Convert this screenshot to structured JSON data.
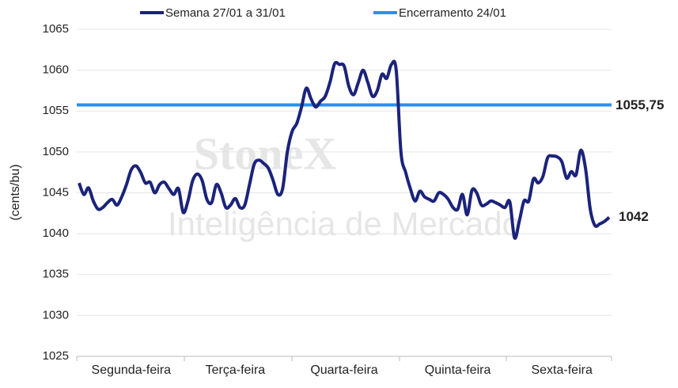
{
  "chart_data": {
    "type": "line",
    "watermark": [
      "StoneX",
      "Inteligência de Mercado"
    ],
    "y_label": "(cents/bu)",
    "categories": [
      null,
      null,
      null,
      null,
      null,
      null,
      null,
      null,
      null,
      null,
      null,
      "Segunda-feira",
      null,
      null,
      null,
      null,
      null,
      null,
      null,
      null,
      null,
      null,
      null,
      null,
      null,
      null,
      null,
      null,
      null,
      null,
      null,
      null,
      null,
      "Terça-feira",
      null,
      null,
      null,
      null,
      null,
      null,
      null,
      null,
      null,
      null,
      null,
      null,
      null,
      null,
      null,
      null,
      null,
      null,
      null,
      null,
      null,
      null,
      "Quarta-feira",
      null,
      null,
      null,
      null,
      null,
      null,
      null,
      null,
      null,
      null,
      null,
      null,
      null,
      null,
      null,
      null,
      null,
      null,
      null,
      null,
      null,
      null,
      null,
      "Quinta-feira",
      null,
      null,
      null,
      null,
      null,
      null,
      null,
      null,
      null,
      null,
      null,
      null,
      null,
      null,
      null,
      null,
      null,
      null,
      null,
      null,
      null,
      "Sexta-feira",
      null,
      null,
      null,
      null,
      null,
      null,
      null,
      null,
      null,
      null
    ],
    "series": [
      {
        "name": "Semana 27/01 a 31/01",
        "color": "#1b237a",
        "values": [
          1046.2,
          1044.8,
          1045.6,
          1044,
          1043,
          1043.2,
          1043.8,
          1044.2,
          1043.5,
          1044.5,
          1046,
          1047.8,
          1048.3,
          1047.5,
          1046.2,
          1046.3,
          1045,
          1046,
          1046.3,
          1045.5,
          1044.8,
          1045.5,
          1042.6,
          1044,
          1046.5,
          1047.3,
          1046.5,
          1044.2,
          1043.8,
          1046,
          1045,
          1043.2,
          1043.5,
          1044.3,
          1043.2,
          1043.5,
          1046,
          1048.5,
          1049,
          1048.6,
          1048,
          1046.5,
          1044.8,
          1045.5,
          1050,
          1052.5,
          1053.5,
          1055.5,
          1057.8,
          1056.5,
          1055.5,
          1056.2,
          1056.8,
          1058.5,
          1060.8,
          1060.7,
          1060.5,
          1058,
          1057,
          1058.5,
          1060,
          1058.5,
          1056.8,
          1057.5,
          1059.5,
          1059,
          1060.7,
          1060,
          1050,
          1047.5,
          1045.5,
          1044,
          1045.2,
          1044.5,
          1044.2,
          1044,
          1045,
          1044.8,
          1044.2,
          1043.2,
          1043,
          1044.8,
          1042.3,
          1045.3,
          1045,
          1043.5,
          1043.6,
          1044,
          1043.8,
          1043.5,
          1043.2,
          1043.9,
          1039.5,
          1041.5,
          1044,
          1044,
          1046.7,
          1046.2,
          1047,
          1049.3,
          1049.5,
          1049.4,
          1048.8,
          1046.8,
          1047.6,
          1047.2,
          1050.2,
          1048,
          1043,
          1041,
          1041.2,
          1041.5,
          1042
        ]
      }
    ],
    "reference_line": {
      "name": "Encerramento 24/01",
      "color": "#2a8ff0",
      "value": 1055.75,
      "value_label": "1055,75"
    },
    "ylim": [
      1025,
      1065
    ],
    "yticks": [
      1025,
      1030,
      1035,
      1040,
      1045,
      1050,
      1055,
      1060,
      1065
    ],
    "grid": true
  }
}
